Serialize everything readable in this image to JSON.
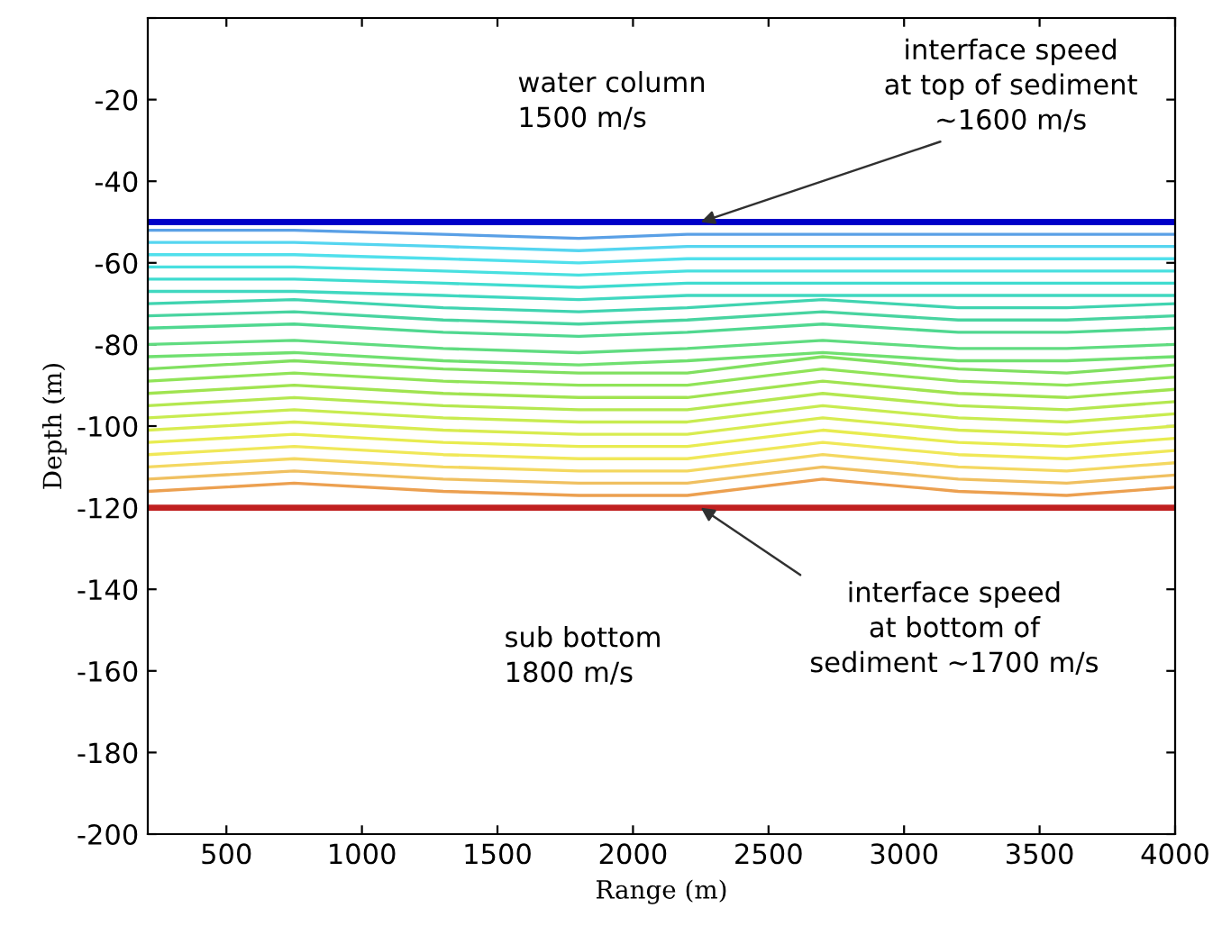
{
  "chart_data": {
    "type": "line",
    "xlabel": "Range (m)",
    "ylabel": "Depth (m)",
    "xlim": [
      210,
      4000
    ],
    "ylim": [
      -200,
      0
    ],
    "xticks": [
      500,
      1000,
      1500,
      2000,
      2500,
      3000,
      3500,
      4000
    ],
    "yticks": [
      {
        "value": 0,
        "label": null
      },
      -20,
      -40,
      -60,
      -80,
      -100,
      -120,
      -140,
      -160,
      -180,
      -200
    ],
    "grid": false,
    "legend": false,
    "marker": "none",
    "line_style": "solid",
    "x": [
      210,
      750,
      1300,
      1800,
      2200,
      2700,
      3200,
      3600,
      4000
    ],
    "series": [
      {
        "color": "#0000c8",
        "values": [
          -50,
          -50,
          -50,
          -50,
          -50,
          -50,
          -50,
          -50,
          -50
        ]
      },
      {
        "color": "#5aa0e6",
        "values": [
          -52,
          -52,
          -53,
          -54,
          -53,
          -53,
          -53,
          -53,
          -53
        ]
      },
      {
        "color": "#55d5f0",
        "values": [
          -55,
          -55,
          -56,
          -57,
          -56,
          -56,
          -56,
          -56,
          -56
        ]
      },
      {
        "color": "#50e0ec",
        "values": [
          -58,
          -58,
          -59,
          -60,
          -59,
          -59,
          -59,
          -59,
          -59
        ]
      },
      {
        "color": "#48e0e0",
        "values": [
          -61,
          -61,
          -62,
          -63,
          -62,
          -62,
          -62,
          -62,
          -62
        ]
      },
      {
        "color": "#40dcd0",
        "values": [
          -64,
          -64,
          -65,
          -66,
          -65,
          -65,
          -65,
          -65,
          -65
        ]
      },
      {
        "color": "#40d8c0",
        "values": [
          -67,
          -67,
          -68,
          -69,
          -68,
          -68,
          -68,
          -68,
          -68
        ]
      },
      {
        "color": "#40d4b0",
        "values": [
          -70,
          -69,
          -71,
          -72,
          -71,
          -69,
          -71,
          -71,
          -70
        ]
      },
      {
        "color": "#48d4a0",
        "values": [
          -73,
          -72,
          -74,
          -75,
          -74,
          -72,
          -74,
          -74,
          -73
        ]
      },
      {
        "color": "#50d890",
        "values": [
          -76,
          -75,
          -77,
          -78,
          -77,
          -75,
          -77,
          -77,
          -76
        ]
      },
      {
        "color": "#60dc80",
        "values": [
          -80,
          -79,
          -81,
          -82,
          -81,
          -79,
          -81,
          -81,
          -80
        ]
      },
      {
        "color": "#70e070",
        "values": [
          -83,
          -82,
          -84,
          -85,
          -84,
          -82,
          -84,
          -84,
          -83
        ]
      },
      {
        "color": "#80e060",
        "values": [
          -86,
          -84,
          -86,
          -87,
          -87,
          -83,
          -86,
          -87,
          -85
        ]
      },
      {
        "color": "#90e458",
        "values": [
          -89,
          -87,
          -89,
          -90,
          -90,
          -86,
          -89,
          -90,
          -88
        ]
      },
      {
        "color": "#a0e450",
        "values": [
          -92,
          -90,
          -92,
          -93,
          -93,
          -89,
          -92,
          -93,
          -91
        ]
      },
      {
        "color": "#b4e850",
        "values": [
          -95,
          -93,
          -95,
          -96,
          -96,
          -92,
          -95,
          -96,
          -94
        ]
      },
      {
        "color": "#c8ec50",
        "values": [
          -98,
          -96,
          -98,
          -99,
          -99,
          -95,
          -98,
          -99,
          -97
        ]
      },
      {
        "color": "#d8ec50",
        "values": [
          -101,
          -99,
          -101,
          -102,
          -102,
          -98,
          -101,
          -102,
          -100
        ]
      },
      {
        "color": "#e8ec50",
        "values": [
          -104,
          -102,
          -104,
          -105,
          -105,
          -101,
          -104,
          -105,
          -103
        ]
      },
      {
        "color": "#f0e858",
        "values": [
          -107,
          -105,
          -107,
          -108,
          -108,
          -104,
          -107,
          -108,
          -106
        ]
      },
      {
        "color": "#f4d860",
        "values": [
          -110,
          -108,
          -110,
          -111,
          -111,
          -107,
          -110,
          -111,
          -109
        ]
      },
      {
        "color": "#f0c060",
        "values": [
          -113,
          -111,
          -113,
          -114,
          -114,
          -110,
          -113,
          -114,
          -112
        ]
      },
      {
        "color": "#eca050",
        "values": [
          -116,
          -114,
          -116,
          -117,
          -117,
          -113,
          -116,
          -117,
          -115
        ]
      },
      {
        "color": "#c02020",
        "values": [
          -120,
          -120,
          -120,
          -120,
          -120,
          -120,
          -120,
          -120,
          -120
        ]
      }
    ],
    "annotations": [
      "water column\n1500 m/s",
      {
        "text": "interface speed\nat top of sediment\n~1600 m/s",
        "x": 2250,
        "y": -50
      },
      {
        "text": "interface speed\nat bottom of\nsediment ~1700 m/s",
        "x": 2250,
        "y": -120
      },
      "sub bottom\n1800 m/s"
    ]
  }
}
